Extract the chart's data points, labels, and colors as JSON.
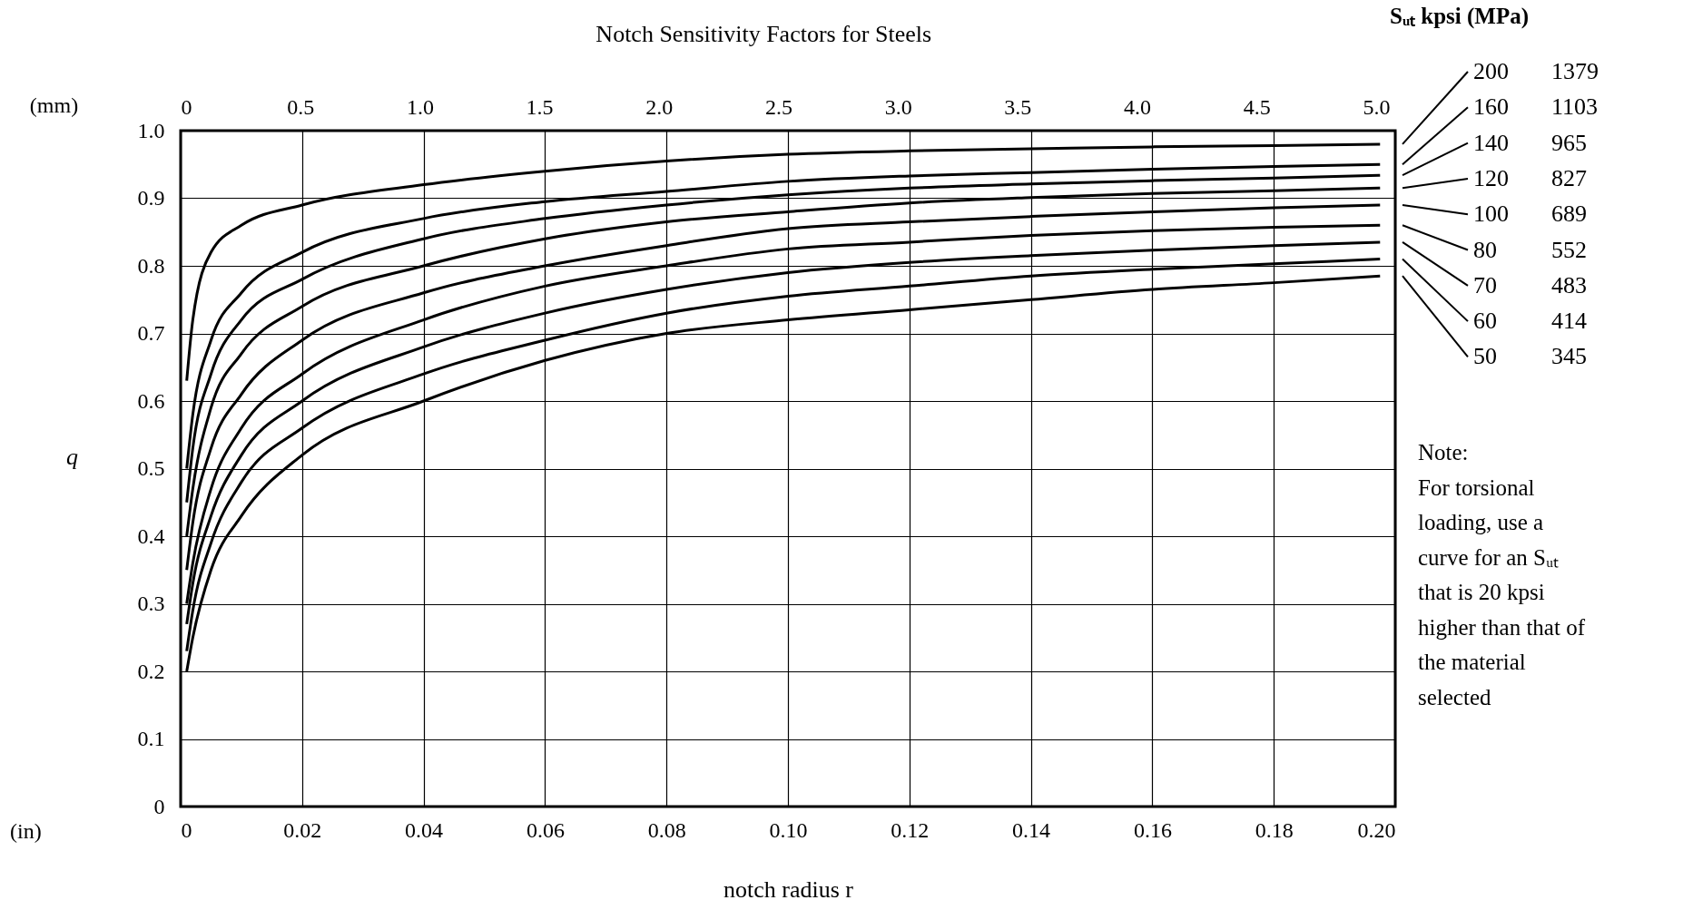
{
  "chart_data": {
    "type": "line",
    "title": "Notch Sensitivity Factors for Steels",
    "xlabel": "notch radius r",
    "ylabel": "q",
    "x2label": "(mm)",
    "legend_title": "Sᵤₜ kpsi (MPa)",
    "x": [
      0.001,
      0.002,
      0.005,
      0.01,
      0.02,
      0.04,
      0.06,
      0.08,
      0.1,
      0.12,
      0.14,
      0.16,
      0.18,
      0.1975
    ],
    "series": [
      {
        "name": "200 1379",
        "color": "#000000",
        "values": [
          0.63,
          0.72,
          0.82,
          0.86,
          0.89,
          0.92,
          0.94,
          0.955,
          0.965,
          0.97,
          0.973,
          0.976,
          0.978,
          0.98
        ]
      },
      {
        "name": "160 1103",
        "color": "#000000",
        "values": [
          0.5,
          0.58,
          0.69,
          0.76,
          0.82,
          0.87,
          0.895,
          0.91,
          0.925,
          0.933,
          0.938,
          0.943,
          0.947,
          0.95
        ]
      },
      {
        "name": "140 965",
        "color": "#000000",
        "values": [
          0.45,
          0.53,
          0.64,
          0.72,
          0.78,
          0.84,
          0.87,
          0.89,
          0.905,
          0.915,
          0.921,
          0.926,
          0.93,
          0.934
        ]
      },
      {
        "name": "120 827",
        "color": "#000000",
        "values": [
          0.4,
          0.47,
          0.59,
          0.67,
          0.74,
          0.8,
          0.84,
          0.865,
          0.88,
          0.893,
          0.901,
          0.907,
          0.911,
          0.915
        ]
      },
      {
        "name": "100 689",
        "color": "#000000",
        "values": [
          0.35,
          0.42,
          0.53,
          0.61,
          0.69,
          0.76,
          0.8,
          0.83,
          0.855,
          0.865,
          0.873,
          0.88,
          0.886,
          0.89
        ]
      },
      {
        "name": "80 552",
        "color": "#000000",
        "values": [
          0.3,
          0.36,
          0.47,
          0.56,
          0.64,
          0.72,
          0.77,
          0.8,
          0.825,
          0.835,
          0.845,
          0.852,
          0.857,
          0.86
        ]
      },
      {
        "name": "70 483",
        "color": "#000000",
        "values": [
          0.27,
          0.33,
          0.43,
          0.52,
          0.6,
          0.68,
          0.73,
          0.765,
          0.79,
          0.805,
          0.815,
          0.823,
          0.83,
          0.835
        ]
      },
      {
        "name": "60 414",
        "color": "#000000",
        "values": [
          0.23,
          0.29,
          0.39,
          0.48,
          0.56,
          0.64,
          0.69,
          0.73,
          0.755,
          0.77,
          0.785,
          0.795,
          0.803,
          0.81
        ]
      },
      {
        "name": "50 345",
        "color": "#000000",
        "values": [
          0.2,
          0.25,
          0.35,
          0.43,
          0.52,
          0.6,
          0.66,
          0.7,
          0.72,
          0.735,
          0.75,
          0.765,
          0.775,
          0.785
        ]
      }
    ],
    "xlim": [
      0,
      0.2
    ],
    "xticks": [
      0,
      0.02,
      0.04,
      0.06,
      0.08,
      {
        "value": 0.1,
        "label": "0.10"
      },
      0.12,
      0.14,
      0.16,
      0.18,
      {
        "value": 0.2,
        "label": "0.20"
      }
    ],
    "x2lim": [
      0,
      5.08
    ],
    "x2ticks": [
      0,
      0.5,
      {
        "value": 1,
        "label": "1.0"
      },
      1.5,
      {
        "value": 2,
        "label": "2.0"
      },
      2.5,
      {
        "value": 3,
        "label": "3.0"
      },
      3.5,
      {
        "value": 4,
        "label": "4.0"
      },
      4.5,
      {
        "value": 5,
        "label": "5.0"
      }
    ],
    "ylim": [
      0,
      1
    ],
    "yticks": [
      0,
      0.1,
      0.2,
      0.3,
      0.4,
      0.5,
      0.6,
      0.7,
      0.8,
      0.9,
      {
        "value": 1,
        "label": "1.0"
      }
    ],
    "grid": true,
    "annotations": [
      "(in)",
      "Note: For torsional loading, use a curve for an Sᵤₜ that is 20 kpsi higher than that of the material selected"
    ]
  }
}
